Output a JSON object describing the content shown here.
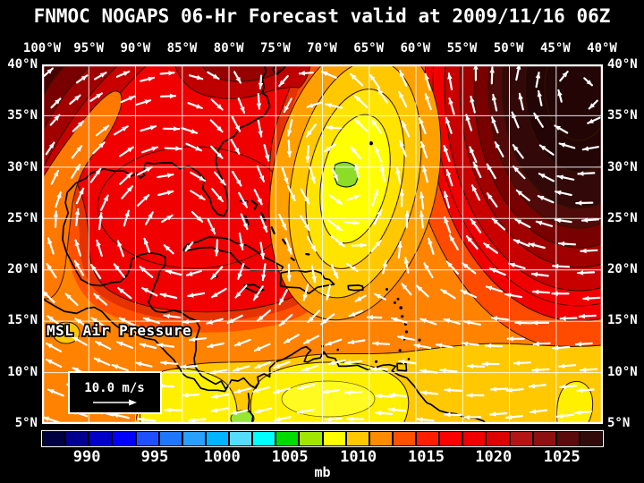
{
  "title": "FNMOC NOGAPS 06-Hr Forecast valid at 2009/11/16 06Z",
  "axes": {
    "lon_labels": [
      "100°W",
      "95°W",
      "90°W",
      "85°W",
      "80°W",
      "75°W",
      "70°W",
      "65°W",
      "60°W",
      "55°W",
      "50°W",
      "45°W",
      "40°W"
    ],
    "lat_labels_left": [
      "40°N",
      "35°N",
      "30°N",
      "25°N",
      "20°N",
      "15°N",
      "10°N",
      "5°N"
    ],
    "lat_labels_right": [
      "40°N",
      "35°N",
      "30°N",
      "25°N",
      "20°N",
      "15°N",
      "10°N",
      "5°N"
    ]
  },
  "overlay": {
    "field_label": "MSL Air Pressure",
    "wind_legend_label": "10.0 m/s"
  },
  "colorbar": {
    "unit_label": "mb",
    "tick_labels": [
      "990",
      "995",
      "1000",
      "1005",
      "1010",
      "1015",
      "1020",
      "1025"
    ],
    "tick_positions_pct": [
      8.0,
      20.1,
      32.1,
      44.2,
      56.4,
      68.5,
      80.5,
      92.7
    ],
    "cell_colors": [
      "#000041",
      "#00008F",
      "#0000C8",
      "#0000FF",
      "#1E50FF",
      "#1E78FF",
      "#28A0FF",
      "#00B4FF",
      "#55DCFF",
      "#00FFFF",
      "#00DC00",
      "#A0E600",
      "#FFFF00",
      "#FFC800",
      "#FF8C00",
      "#FF5000",
      "#FF1E00",
      "#FF0000",
      "#F00000",
      "#DC0000",
      "#B41414",
      "#8C1010",
      "#5A0A0A",
      "#320A0A"
    ]
  },
  "map_palette": {
    "background_orange": "#FF8200",
    "orange_red_band": "#FF5000",
    "red_orange_band": "#E63200",
    "red": "#F00000",
    "dark_red_bands": [
      "#C80000",
      "#A00000",
      "#780000",
      "#4B0000"
    ],
    "top_tongue": "#BE0000",
    "top_tongue_core": "#960000",
    "high_bands_right": [
      "#FF4B00",
      "#F00000",
      "#C80000",
      "#A00000",
      "#780000",
      "#500A0A",
      "#320808",
      "#230505"
    ],
    "amber_ring": "#FFA000",
    "gold": "#FFC800",
    "yellow_ring": "#FFE400",
    "yellow_core": "#FFFF00",
    "south_yellow": "#FFF000",
    "low_center_green": "#8CDC28",
    "south_green": "#96E632",
    "wind_arrow": "#FFFFFF",
    "grid_line": "#FFFFFF",
    "coastline": "#000000",
    "contour_line": "#321400",
    "legend_box_bg": "#000000",
    "legend_box_border": "#FFFFFF"
  },
  "chart_data": {
    "type": "heatmap",
    "variable": "MSL Air Pressure",
    "unit": "mb",
    "model_title": "FNMOC NOGAPS 06-Hr Forecast",
    "valid_time": "2009/11/16 06Z",
    "lon_ticks_deg_west": [
      100,
      95,
      90,
      85,
      80,
      75,
      70,
      65,
      60,
      55,
      50,
      45,
      40
    ],
    "lat_ticks_deg_north": [
      40,
      35,
      30,
      25,
      20,
      15,
      10,
      5
    ],
    "scale_mb": [
      990,
      995,
      1000,
      1005,
      1010,
      1015,
      1020,
      1025
    ],
    "wind_reference_speed_m_s": 10.0,
    "notable_features": [
      {
        "feature": "closed low pressure center (green core, ~1006-1008 mb)",
        "approx_lon": "70W",
        "approx_lat": "29N"
      },
      {
        "feature": "strong high pressure cell (~1024-1026 mb)",
        "approx_lon": "47W",
        "approx_lat": "37N"
      },
      {
        "feature": "high pressure ridge (~1022 mb)",
        "approx_lon": "100W",
        "approx_lat": "38N"
      },
      {
        "feature": "easterly trade-wind flow with ~1012-1014 mb",
        "region": "Caribbean / tropics south of 15N"
      }
    ]
  }
}
